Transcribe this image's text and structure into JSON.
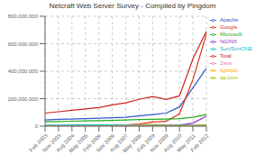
{
  "chart_data": {
    "type": "line",
    "title": "Netcraft Web Server Survey - Compiled by Pingdom",
    "categories": [
      "Feb 2003",
      "Nov 2003",
      "Aug 2004",
      "May 2005",
      "Feb 2006",
      "Nov 2006",
      "Aug 2007",
      "May 2008",
      "Feb 2009",
      "Nov 2009",
      "Aug 2010",
      "May 2011",
      "Feb 2012"
    ],
    "series": [
      {
        "name": "Apache",
        "color": "#3355cc",
        "values": [
          45000000,
          50000000,
          52000000,
          55000000,
          58000000,
          62000000,
          65000000,
          75000000,
          85000000,
          95000000,
          140000000,
          280000000,
          420000000
        ]
      },
      {
        "name": "Google",
        "color": "#dd3311",
        "values": [
          2000000,
          3000000,
          4000000,
          5000000,
          6000000,
          8000000,
          10000000,
          15000000,
          30000000,
          35000000,
          90000000,
          340000000,
          670000000
        ]
      },
      {
        "name": "lighttpd",
        "color": "#ffaa00",
        "values": [
          1000000,
          1500000,
          2000000,
          3000000,
          5000000,
          7000000,
          9000000,
          11000000,
          12000000,
          9000000,
          6000000,
          5000000,
          6000000
        ]
      },
      {
        "name": "Microsoft",
        "color": "#22aa22",
        "values": [
          32000000,
          34000000,
          36000000,
          38000000,
          40000000,
          42000000,
          45000000,
          48000000,
          50000000,
          52000000,
          55000000,
          65000000,
          85000000
        ]
      },
      {
        "name": "NGINX",
        "color": "#8833cc",
        "values": [
          0,
          0,
          0,
          0,
          0,
          0,
          500000,
          1000000,
          2000000,
          4000000,
          8000000,
          22000000,
          72000000
        ]
      },
      {
        "name": "Sun/SunONE",
        "color": "#11bbcc",
        "values": [
          8000000,
          8000000,
          8500000,
          9000000,
          9000000,
          8500000,
          8000000,
          7500000,
          7000000,
          6500000,
          6000000,
          5500000,
          5000000
        ]
      },
      {
        "name": "Zeus",
        "color": "#ee77aa",
        "values": [
          2000000,
          2200000,
          2500000,
          2800000,
          3000000,
          3200000,
          3500000,
          4000000,
          4200000,
          4500000,
          4800000,
          5000000,
          5200000
        ]
      },
      {
        "name": "qq.com",
        "color": "#99bb00",
        "values": [
          0,
          0,
          0,
          0,
          0,
          0,
          0,
          0,
          500000,
          1000000,
          2000000,
          5000000,
          9000000
        ]
      },
      {
        "name": "Total",
        "color": "#cc2222",
        "values": [
          95000000,
          105000000,
          115000000,
          125000000,
          135000000,
          155000000,
          170000000,
          195000000,
          215000000,
          195000000,
          220000000,
          490000000,
          690000000
        ]
      }
    ],
    "ylim": [
      0,
      800000000
    ],
    "yticks": [
      0,
      {
        "value": 200000000,
        "label": "200,000,000"
      },
      {
        "value": 400000000,
        "label": "400,000,000"
      },
      {
        "value": 600000000,
        "label": "600,000,000"
      },
      {
        "value": 800000000,
        "label": "800,000,000"
      }
    ],
    "grid": true,
    "legend": "right"
  }
}
